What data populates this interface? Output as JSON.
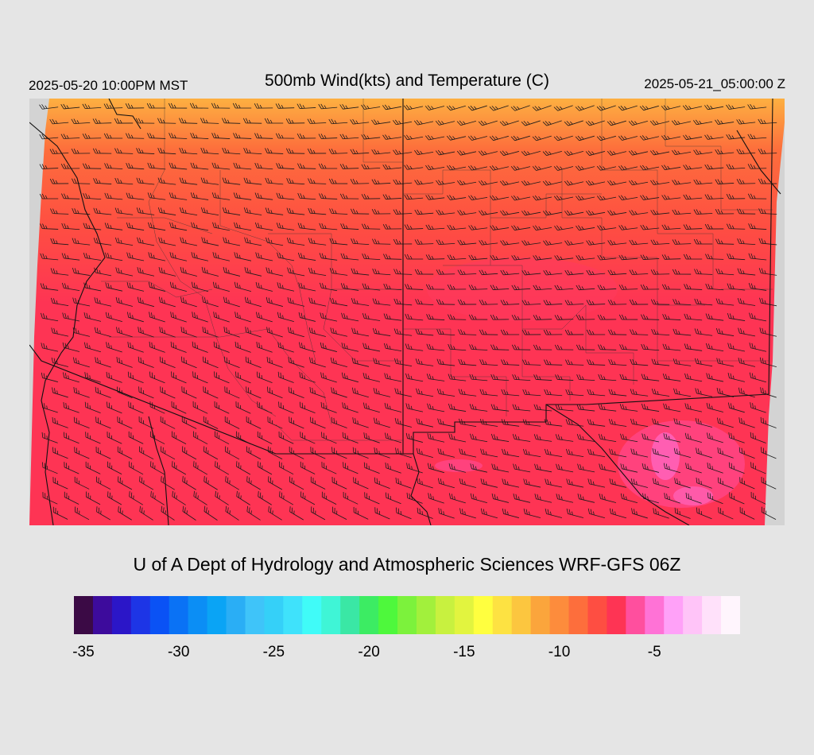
{
  "header": {
    "local_time": "2025-05-20 10:00PM MST",
    "title": "500mb Wind(kts) and Temperature (C)",
    "valid_time": "2025-05-21_05:00:00 Z"
  },
  "credit": "U of A Dept of Hydrology and Atmospheric Sciences WRF-GFS 06Z",
  "colorbar": {
    "colors": [
      "#3b0a45",
      "#3d0b9c",
      "#2b16c8",
      "#1d35e6",
      "#0a52f5",
      "#0a72f5",
      "#0b8ef5",
      "#0aa4f5",
      "#2aaef5",
      "#3fc4f9",
      "#35d0f8",
      "#3fe2fb",
      "#40fbf8",
      "#3ff5d6",
      "#3ae7a5",
      "#3cec63",
      "#4ef83c",
      "#7cf23c",
      "#a2f03c",
      "#c8f13f",
      "#e2f43f",
      "#ffff3f",
      "#fde242",
      "#fcc63f",
      "#fba53c",
      "#fd8c3c",
      "#fd6e3c",
      "#fe4e42",
      "#fe3454",
      "#ff4f9e",
      "#ff72d6",
      "#ffa1f8",
      "#ffc4f8",
      "#ffe1fa",
      "#fff5fd"
    ],
    "tick_labels": [
      "-35",
      "-30",
      "-25",
      "-20",
      "-15",
      "-10",
      "-5"
    ],
    "tick_index": [
      0,
      5,
      10,
      15,
      20,
      25,
      30
    ]
  },
  "map_palette": {
    "north_band": "#fdb041",
    "upper": "#fd6e3c",
    "middle": "#fe4e42",
    "main": "#fe3454",
    "warm_patch": "#ff4f9e",
    "hot_patch": "#ff72d6",
    "boundary": "#111111",
    "barb": "#1a1a1a"
  }
}
